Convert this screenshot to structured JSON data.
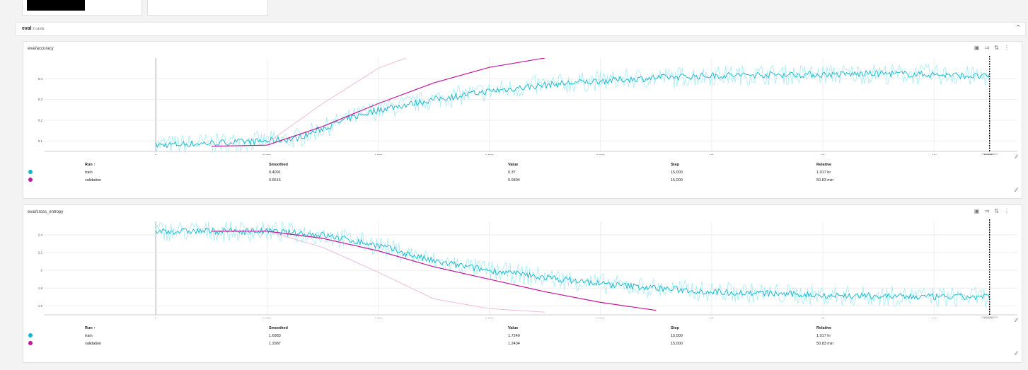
{
  "section": {
    "name": "eval",
    "count": "2 cards",
    "collapse_icon": "chevron-up-icon"
  },
  "toolbar_icons": [
    "fullscreen-icon",
    "pin-icon",
    "fit-domain-icon",
    "more-vert-icon"
  ],
  "colors": {
    "train": "#12b5cb",
    "train_raw": "#a6ecf3",
    "validation": "#c2189b",
    "validation_raw": "#f0bcd9"
  },
  "table_headers": {
    "run": "Run ↑",
    "smoothed": "Smoothed",
    "value": "Value",
    "step": "Step",
    "relative": "Relative"
  },
  "charts": [
    {
      "title": "eval/accuracy",
      "step_badge": "15000 »",
      "rows": [
        {
          "run": "train",
          "smoothed": "0.4091",
          "value": "0.37",
          "step": "15,000",
          "relative": "1.017 hr"
        },
        {
          "run": "validation",
          "smoothed": "0.6515",
          "value": "0.6804",
          "step": "15,000",
          "relative": "50.83 min"
        }
      ]
    },
    {
      "title": "eval/cross_entropy",
      "step_badge": "15000 »",
      "rows": [
        {
          "run": "train",
          "smoothed": "1.6983",
          "value": "1.7249",
          "step": "15,000",
          "relative": "1.017 hr"
        },
        {
          "run": "validation",
          "smoothed": "1.2987",
          "value": "1.2434",
          "step": "15,000",
          "relative": "50.83 min"
        }
      ]
    }
  ],
  "chart_data": [
    {
      "type": "line",
      "title": "eval/accuracy",
      "xlim": [
        -2000,
        15500
      ],
      "ylim": [
        0.05,
        0.5
      ],
      "x_ticks": [
        0,
        2000,
        4000,
        6000,
        8000,
        10000,
        12000,
        14000
      ],
      "x_tick_labels": [
        "0",
        "2,000",
        "4,000",
        "6,000",
        "8,000",
        "10k",
        "12k",
        "14k"
      ],
      "y_ticks": [
        0.1,
        0.2,
        0.3,
        0.4
      ],
      "y_tick_labels": [
        "0.1",
        "0.2",
        "0.3",
        "0.4"
      ],
      "grid": true,
      "series": [
        {
          "name": "train",
          "noisy": true,
          "x": [
            0,
            1000,
            2000,
            2500,
            3000,
            3500,
            4000,
            5000,
            6000,
            7000,
            8000,
            9000,
            10000,
            11000,
            12000,
            13000,
            14000,
            15000
          ],
          "y": [
            0.08,
            0.09,
            0.1,
            0.11,
            0.16,
            0.21,
            0.25,
            0.3,
            0.34,
            0.37,
            0.39,
            0.405,
            0.415,
            0.42,
            0.42,
            0.425,
            0.42,
            0.41
          ]
        },
        {
          "name": "validation",
          "x": [
            1000,
            2000,
            3000,
            4000,
            5000,
            6000,
            7000
          ],
          "y": [
            0.075,
            0.08,
            0.17,
            0.28,
            0.38,
            0.455,
            0.5
          ],
          "raw_x": [
            2000,
            3000,
            4000,
            4500
          ],
          "raw_y": [
            0.09,
            0.28,
            0.45,
            0.5
          ]
        }
      ]
    },
    {
      "type": "line",
      "title": "eval/cross_entropy",
      "xlim": [
        -2000,
        15500
      ],
      "ylim": [
        1.5,
        2.55
      ],
      "x_ticks": [
        0,
        2000,
        4000,
        6000,
        8000,
        10000,
        12000,
        14000
      ],
      "x_tick_labels": [
        "0",
        "2,000",
        "4,000",
        "6,000",
        "8,000",
        "10k",
        "12k",
        "14k"
      ],
      "y_ticks": [
        1.6,
        1.8,
        2,
        2.2,
        2.4
      ],
      "y_tick_labels": [
        "1.6",
        "1.8",
        "2",
        "2.2",
        "2.4"
      ],
      "grid": true,
      "series": [
        {
          "name": "train",
          "noisy": true,
          "x": [
            0,
            1000,
            2000,
            3000,
            4000,
            5000,
            6000,
            7000,
            8000,
            9000,
            10000,
            11000,
            12000,
            13000,
            14000,
            15000
          ],
          "y": [
            2.44,
            2.44,
            2.44,
            2.4,
            2.28,
            2.1,
            2.0,
            1.92,
            1.85,
            1.8,
            1.76,
            1.74,
            1.72,
            1.71,
            1.7,
            1.7
          ]
        },
        {
          "name": "validation",
          "x": [
            1000,
            2000,
            3000,
            4000,
            5000,
            6000,
            7000,
            8000,
            9000
          ],
          "y": [
            2.44,
            2.44,
            2.36,
            2.22,
            2.04,
            1.9,
            1.76,
            1.64,
            1.55
          ],
          "raw_x": [
            2000,
            3000,
            4000,
            5000,
            6000,
            7000
          ],
          "raw_y": [
            2.44,
            2.26,
            1.98,
            1.68,
            1.57,
            1.53
          ]
        }
      ]
    }
  ]
}
